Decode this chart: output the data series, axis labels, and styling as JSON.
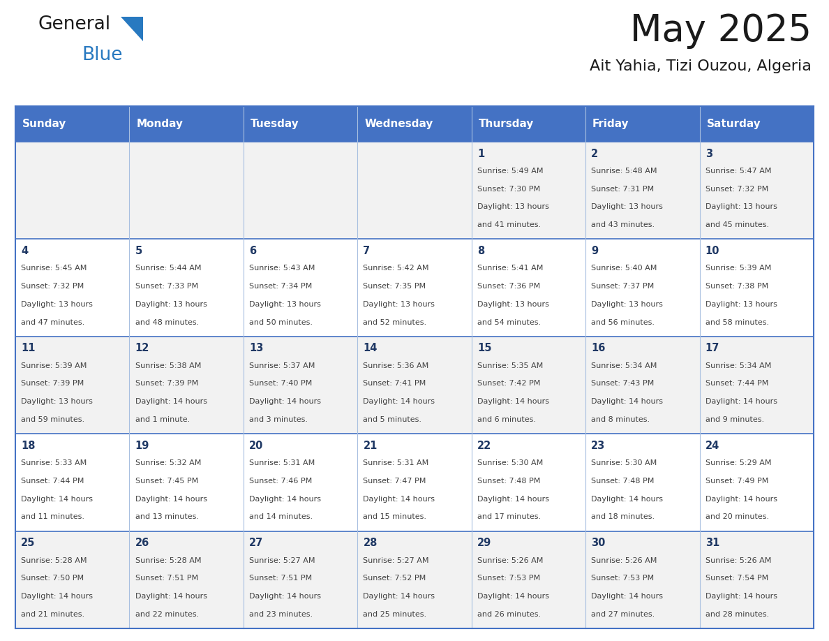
{
  "title": "May 2025",
  "subtitle": "Ait Yahia, Tizi Ouzou, Algeria",
  "days_of_week": [
    "Sunday",
    "Monday",
    "Tuesday",
    "Wednesday",
    "Thursday",
    "Friday",
    "Saturday"
  ],
  "header_bg": "#4472C4",
  "header_text_color": "#FFFFFF",
  "cell_bg_odd": "#F2F2F2",
  "cell_bg_even": "#FFFFFF",
  "day_number_color": "#1F3864",
  "cell_text_color": "#404040",
  "border_color": "#4472C4",
  "inner_line_color": "#7F9FD4",
  "title_color": "#1a1a1a",
  "subtitle_color": "#1a1a1a",
  "logo_general_color": "#1a1a1a",
  "logo_blue_color": "#2879C0",
  "calendar_data": [
    [
      null,
      null,
      null,
      null,
      {
        "day": 1,
        "sunrise": "5:49 AM",
        "sunset": "7:30 PM",
        "daylight": "13 hours and 41 minutes."
      },
      {
        "day": 2,
        "sunrise": "5:48 AM",
        "sunset": "7:31 PM",
        "daylight": "13 hours and 43 minutes."
      },
      {
        "day": 3,
        "sunrise": "5:47 AM",
        "sunset": "7:32 PM",
        "daylight": "13 hours and 45 minutes."
      }
    ],
    [
      {
        "day": 4,
        "sunrise": "5:45 AM",
        "sunset": "7:32 PM",
        "daylight": "13 hours and 47 minutes."
      },
      {
        "day": 5,
        "sunrise": "5:44 AM",
        "sunset": "7:33 PM",
        "daylight": "13 hours and 48 minutes."
      },
      {
        "day": 6,
        "sunrise": "5:43 AM",
        "sunset": "7:34 PM",
        "daylight": "13 hours and 50 minutes."
      },
      {
        "day": 7,
        "sunrise": "5:42 AM",
        "sunset": "7:35 PM",
        "daylight": "13 hours and 52 minutes."
      },
      {
        "day": 8,
        "sunrise": "5:41 AM",
        "sunset": "7:36 PM",
        "daylight": "13 hours and 54 minutes."
      },
      {
        "day": 9,
        "sunrise": "5:40 AM",
        "sunset": "7:37 PM",
        "daylight": "13 hours and 56 minutes."
      },
      {
        "day": 10,
        "sunrise": "5:39 AM",
        "sunset": "7:38 PM",
        "daylight": "13 hours and 58 minutes."
      }
    ],
    [
      {
        "day": 11,
        "sunrise": "5:39 AM",
        "sunset": "7:39 PM",
        "daylight": "13 hours and 59 minutes."
      },
      {
        "day": 12,
        "sunrise": "5:38 AM",
        "sunset": "7:39 PM",
        "daylight": "14 hours and 1 minute."
      },
      {
        "day": 13,
        "sunrise": "5:37 AM",
        "sunset": "7:40 PM",
        "daylight": "14 hours and 3 minutes."
      },
      {
        "day": 14,
        "sunrise": "5:36 AM",
        "sunset": "7:41 PM",
        "daylight": "14 hours and 5 minutes."
      },
      {
        "day": 15,
        "sunrise": "5:35 AM",
        "sunset": "7:42 PM",
        "daylight": "14 hours and 6 minutes."
      },
      {
        "day": 16,
        "sunrise": "5:34 AM",
        "sunset": "7:43 PM",
        "daylight": "14 hours and 8 minutes."
      },
      {
        "day": 17,
        "sunrise": "5:34 AM",
        "sunset": "7:44 PM",
        "daylight": "14 hours and 9 minutes."
      }
    ],
    [
      {
        "day": 18,
        "sunrise": "5:33 AM",
        "sunset": "7:44 PM",
        "daylight": "14 hours and 11 minutes."
      },
      {
        "day": 19,
        "sunrise": "5:32 AM",
        "sunset": "7:45 PM",
        "daylight": "14 hours and 13 minutes."
      },
      {
        "day": 20,
        "sunrise": "5:31 AM",
        "sunset": "7:46 PM",
        "daylight": "14 hours and 14 minutes."
      },
      {
        "day": 21,
        "sunrise": "5:31 AM",
        "sunset": "7:47 PM",
        "daylight": "14 hours and 15 minutes."
      },
      {
        "day": 22,
        "sunrise": "5:30 AM",
        "sunset": "7:48 PM",
        "daylight": "14 hours and 17 minutes."
      },
      {
        "day": 23,
        "sunrise": "5:30 AM",
        "sunset": "7:48 PM",
        "daylight": "14 hours and 18 minutes."
      },
      {
        "day": 24,
        "sunrise": "5:29 AM",
        "sunset": "7:49 PM",
        "daylight": "14 hours and 20 minutes."
      }
    ],
    [
      {
        "day": 25,
        "sunrise": "5:28 AM",
        "sunset": "7:50 PM",
        "daylight": "14 hours and 21 minutes."
      },
      {
        "day": 26,
        "sunrise": "5:28 AM",
        "sunset": "7:51 PM",
        "daylight": "14 hours and 22 minutes."
      },
      {
        "day": 27,
        "sunrise": "5:27 AM",
        "sunset": "7:51 PM",
        "daylight": "14 hours and 23 minutes."
      },
      {
        "day": 28,
        "sunrise": "5:27 AM",
        "sunset": "7:52 PM",
        "daylight": "14 hours and 25 minutes."
      },
      {
        "day": 29,
        "sunrise": "5:26 AM",
        "sunset": "7:53 PM",
        "daylight": "14 hours and 26 minutes."
      },
      {
        "day": 30,
        "sunrise": "5:26 AM",
        "sunset": "7:53 PM",
        "daylight": "14 hours and 27 minutes."
      },
      {
        "day": 31,
        "sunrise": "5:26 AM",
        "sunset": "7:54 PM",
        "daylight": "14 hours and 28 minutes."
      }
    ]
  ]
}
